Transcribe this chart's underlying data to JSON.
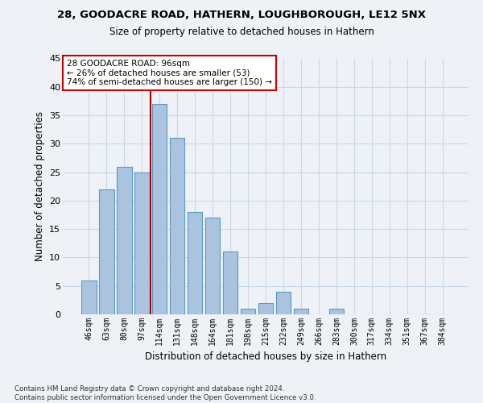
{
  "title1": "28, GOODACRE ROAD, HATHERN, LOUGHBOROUGH, LE12 5NX",
  "title2": "Size of property relative to detached houses in Hathern",
  "xlabel": "Distribution of detached houses by size in Hathern",
  "ylabel": "Number of detached properties",
  "categories": [
    "46sqm",
    "63sqm",
    "80sqm",
    "97sqm",
    "114sqm",
    "131sqm",
    "148sqm",
    "164sqm",
    "181sqm",
    "198sqm",
    "215sqm",
    "232sqm",
    "249sqm",
    "266sqm",
    "283sqm",
    "300sqm",
    "317sqm",
    "334sqm",
    "351sqm",
    "367sqm",
    "384sqm"
  ],
  "values": [
    6,
    22,
    26,
    25,
    37,
    31,
    18,
    17,
    11,
    1,
    2,
    4,
    1,
    0,
    1,
    0,
    0,
    0,
    0,
    0,
    0
  ],
  "bar_color": "#aac4e0",
  "bar_edge_color": "#5a9ac8",
  "vline_index": 3,
  "vline_color": "#aa0000",
  "annotation_text": "28 GOODACRE ROAD: 96sqm\n← 26% of detached houses are smaller (53)\n74% of semi-detached houses are larger (150) →",
  "annotation_box_color": "#ffffff",
  "annotation_box_edge": "#cc0000",
  "ylim": [
    0,
    45
  ],
  "yticks": [
    0,
    5,
    10,
    15,
    20,
    25,
    30,
    35,
    40,
    45
  ],
  "grid_color": "#c8d8e8",
  "background_color": "#eef2f7",
  "footer": "Contains HM Land Registry data © Crown copyright and database right 2024.\nContains public sector information licensed under the Open Government Licence v3.0."
}
